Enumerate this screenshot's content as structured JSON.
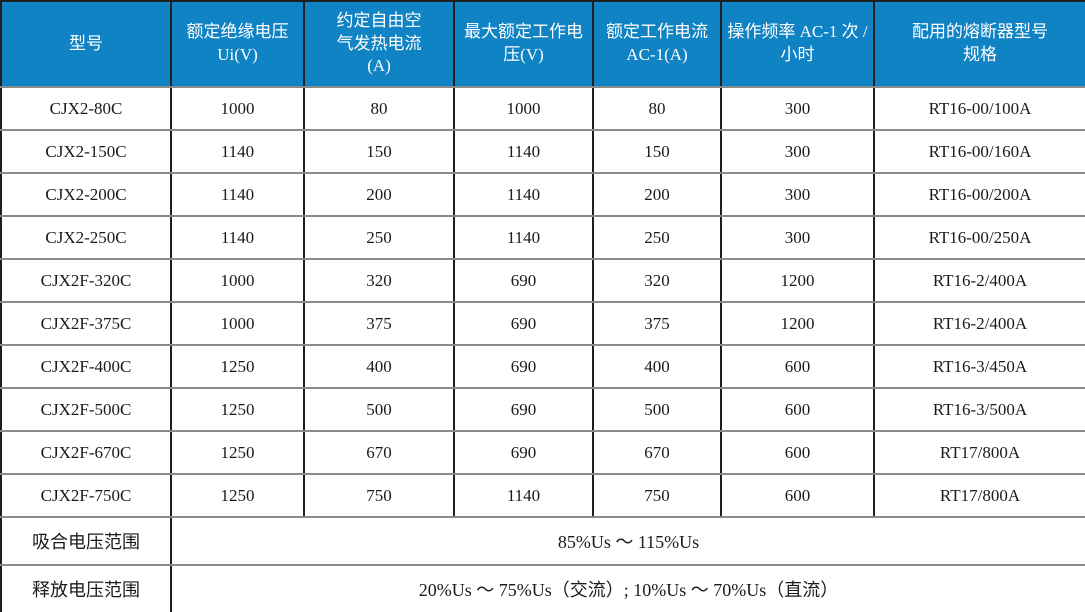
{
  "table": {
    "headers": [
      "型号",
      "额定绝缘电压 Ui(V)",
      "约定自由空气发热电流(A)",
      "最大额定工作电压(V)",
      "额定工作电流 AC-1(A)",
      "操作频率 AC-1 次 / 小时",
      "配用的熔断器型号规格"
    ],
    "rows": [
      [
        "CJX2-80C",
        "1000",
        "80",
        "1000",
        "80",
        "300",
        "RT16-00/100A"
      ],
      [
        "CJX2-150C",
        "1140",
        "150",
        "1140",
        "150",
        "300",
        "RT16-00/160A"
      ],
      [
        "CJX2-200C",
        "1140",
        "200",
        "1140",
        "200",
        "300",
        "RT16-00/200A"
      ],
      [
        "CJX2-250C",
        "1140",
        "250",
        "1140",
        "250",
        "300",
        "RT16-00/250A"
      ],
      [
        "CJX2F-320C",
        "1000",
        "320",
        "690",
        "320",
        "1200",
        "RT16-2/400A"
      ],
      [
        "CJX2F-375C",
        "1000",
        "375",
        "690",
        "375",
        "1200",
        "RT16-2/400A"
      ],
      [
        "CJX2F-400C",
        "1250",
        "400",
        "690",
        "400",
        "600",
        "RT16-3/450A"
      ],
      [
        "CJX2F-500C",
        "1250",
        "500",
        "690",
        "500",
        "600",
        "RT16-3/500A"
      ],
      [
        "CJX2F-670C",
        "1250",
        "670",
        "690",
        "670",
        "600",
        "RT17/800A"
      ],
      [
        "CJX2F-750C",
        "1250",
        "750",
        "1140",
        "750",
        "600",
        "RT17/800A"
      ]
    ],
    "footer_rows": [
      {
        "label": "吸合电压范围",
        "value": "85%Us ～ 115%Us"
      },
      {
        "label": "释放电压范围",
        "value": "20%Us ～ 75%Us（交流）; 10%Us ～ 70%Us（直流）"
      }
    ],
    "colors": {
      "header_bg": "#1083C5",
      "header_text": "#FFFFFF",
      "body_text": "#1A1A1A",
      "vertical_border": "#1F1F1F",
      "horizontal_border": "#8A8A8A"
    }
  }
}
